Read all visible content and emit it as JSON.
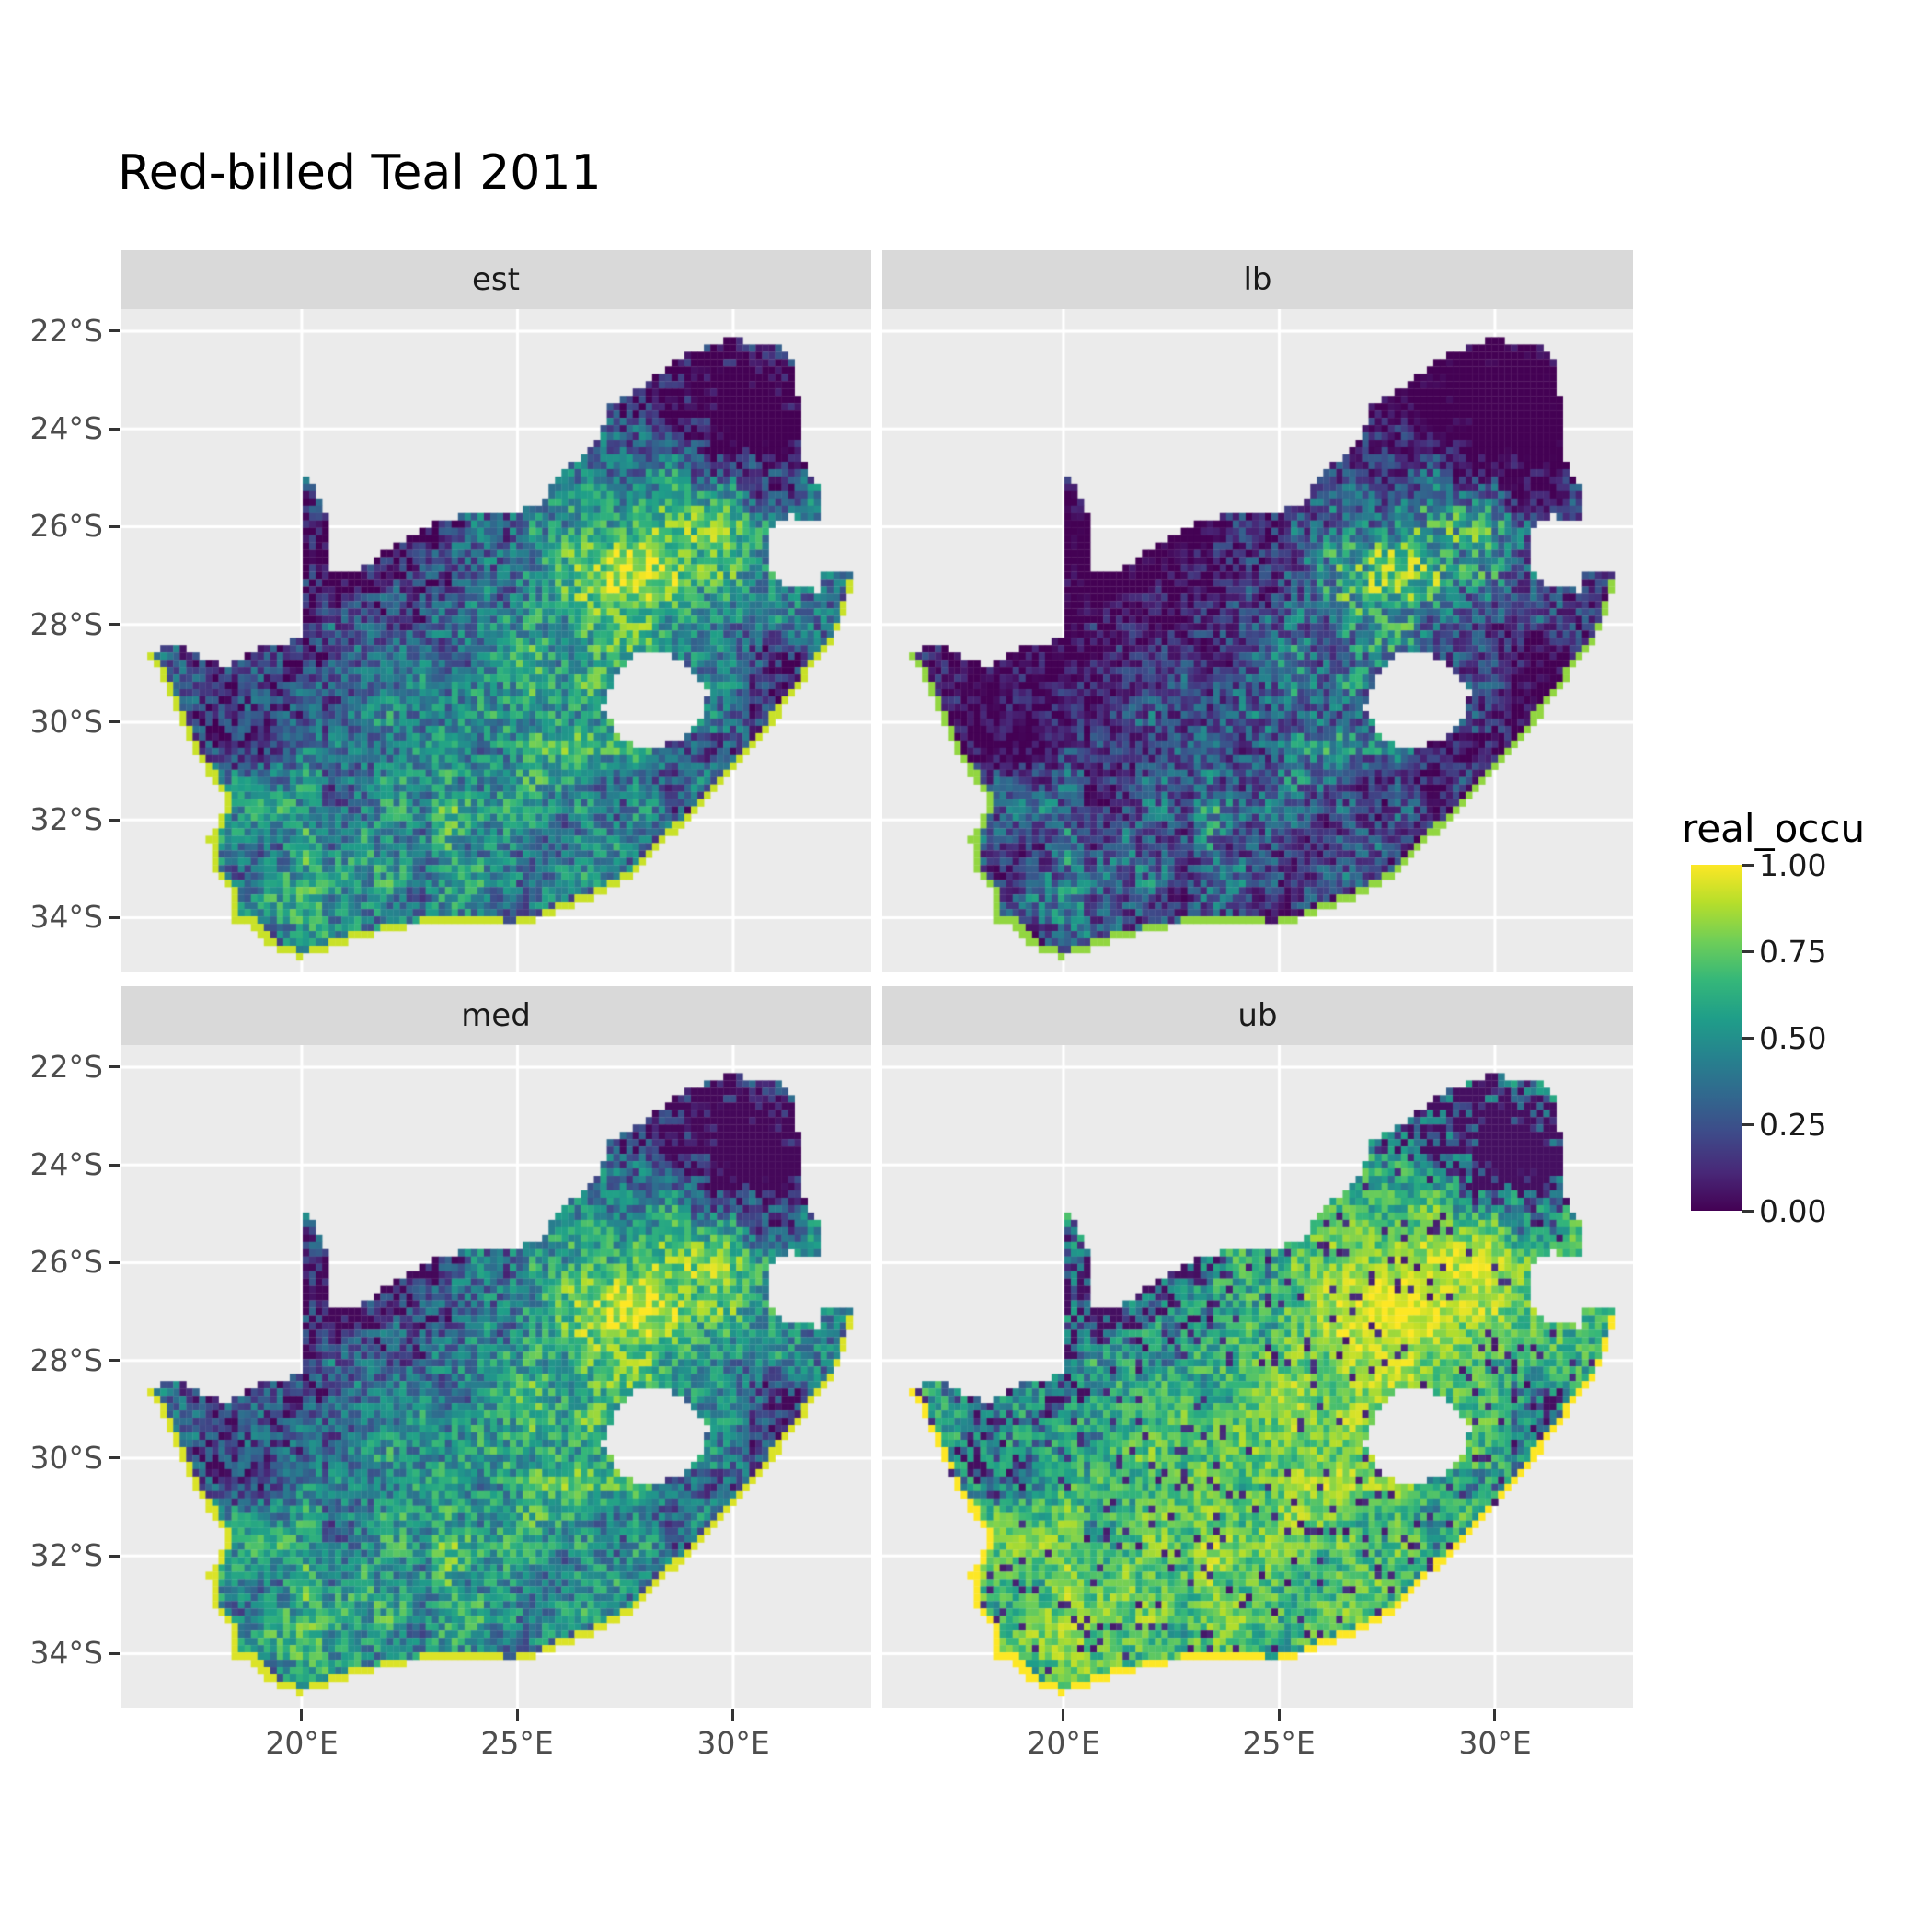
{
  "chart_data": {
    "type": "heatmap",
    "title": "Red-billed Teal 2011",
    "variable": "real_occu",
    "facets": [
      {
        "key": "est",
        "label": "est"
      },
      {
        "key": "lb",
        "label": "lb"
      },
      {
        "key": "med",
        "label": "med"
      },
      {
        "key": "ub",
        "label": "ub"
      }
    ],
    "legend": {
      "title": "real_occu",
      "tick_labels": [
        "1.00",
        "0.75",
        "0.50",
        "0.25",
        "0.00"
      ],
      "limits": [
        0,
        1
      ],
      "position": "right"
    },
    "axes": {
      "x_tick_labels": [
        "20°E",
        "25°E",
        "30°E"
      ],
      "x_tick_values": [
        20,
        25,
        30
      ],
      "y_tick_labels": [
        "22°S",
        "24°S",
        "26°S",
        "28°S",
        "30°S",
        "32°S",
        "34°S"
      ],
      "y_tick_values": [
        -22,
        -24,
        -26,
        -28,
        -30,
        -32,
        -34
      ],
      "grid": true
    },
    "projection": {
      "lon_domain": [
        15.8,
        33.2
      ],
      "lat_domain": [
        -21.55,
        -35.1
      ]
    },
    "colormap": {
      "name": "viridis",
      "stops": [
        "#440154",
        "#482878",
        "#3e4a89",
        "#31688e",
        "#26828e",
        "#1f9e89",
        "#35b779",
        "#6ece58",
        "#b5de2b",
        "#fde725"
      ]
    },
    "style": {
      "panel_bg": "#EBEBEB",
      "strip_bg": "#D9D9D9",
      "grid_color": "#FFFFFF",
      "axis_text": "#4D4D4D",
      "strip_text": "#1A1A1A",
      "title_color": "#000000"
    },
    "map": {
      "region": "South Africa",
      "cell_size_deg": 0.15,
      "outline": [
        [
          16.45,
          -28.6
        ],
        [
          17.1,
          -28.35
        ],
        [
          17.65,
          -28.7
        ],
        [
          18.3,
          -28.85
        ],
        [
          19.0,
          -28.5
        ],
        [
          19.55,
          -28.45
        ],
        [
          19.99,
          -28.25
        ],
        [
          19.99,
          -24.77
        ],
        [
          20.35,
          -25.35
        ],
        [
          20.65,
          -26.0
        ],
        [
          20.7,
          -26.85
        ],
        [
          21.4,
          -26.85
        ],
        [
          22.1,
          -26.4
        ],
        [
          22.9,
          -26.0
        ],
        [
          23.9,
          -25.75
        ],
        [
          24.75,
          -25.75
        ],
        [
          25.55,
          -25.55
        ],
        [
          25.9,
          -24.95
        ],
        [
          26.45,
          -24.6
        ],
        [
          26.85,
          -24.25
        ],
        [
          27.15,
          -23.55
        ],
        [
          27.95,
          -23.1
        ],
        [
          28.95,
          -22.45
        ],
        [
          29.95,
          -22.15
        ],
        [
          30.9,
          -22.3
        ],
        [
          31.3,
          -22.4
        ],
        [
          31.55,
          -23.5
        ],
        [
          31.55,
          -24.6
        ],
        [
          31.95,
          -25.15
        ],
        [
          32.0,
          -25.65
        ],
        [
          31.95,
          -25.95
        ],
        [
          31.3,
          -25.75
        ],
        [
          30.85,
          -26.0
        ],
        [
          30.8,
          -26.85
        ],
        [
          31.1,
          -27.2
        ],
        [
          31.95,
          -27.32
        ],
        [
          32.15,
          -26.85
        ],
        [
          32.89,
          -26.86
        ],
        [
          32.55,
          -27.9
        ],
        [
          32.25,
          -28.5
        ],
        [
          31.75,
          -29.0
        ],
        [
          31.05,
          -29.87
        ],
        [
          30.25,
          -30.75
        ],
        [
          29.4,
          -31.6
        ],
        [
          28.6,
          -32.3
        ],
        [
          27.9,
          -33.0
        ],
        [
          27.0,
          -33.5
        ],
        [
          26.3,
          -33.75
        ],
        [
          25.65,
          -34.0
        ],
        [
          24.85,
          -34.2
        ],
        [
          23.6,
          -34.1
        ],
        [
          22.5,
          -34.2
        ],
        [
          21.4,
          -34.4
        ],
        [
          20.0,
          -34.83
        ],
        [
          19.3,
          -34.6
        ],
        [
          18.8,
          -34.1
        ],
        [
          18.35,
          -34.2
        ],
        [
          18.45,
          -33.6
        ],
        [
          17.95,
          -33.0
        ],
        [
          17.85,
          -32.4
        ],
        [
          18.3,
          -31.7
        ],
        [
          17.6,
          -30.7
        ],
        [
          17.05,
          -29.7
        ],
        [
          16.7,
          -29.0
        ]
      ],
      "lesotho_hole": [
        [
          27.0,
          -29.7
        ],
        [
          27.35,
          -28.95
        ],
        [
          27.8,
          -28.6
        ],
        [
          28.5,
          -28.6
        ],
        [
          29.1,
          -28.95
        ],
        [
          29.45,
          -29.35
        ],
        [
          29.3,
          -29.95
        ],
        [
          28.75,
          -30.35
        ],
        [
          28.0,
          -30.6
        ],
        [
          27.35,
          -30.35
        ]
      ],
      "coast_start_index": 37
    },
    "field": {
      "base": 0.3,
      "blobs": [
        [
          28.3,
          -26.7,
          3.0,
          1.5,
          0.55
        ],
        [
          26.0,
          -29.4,
          2.6,
          1.6,
          0.26
        ],
        [
          24.0,
          -31.8,
          3.4,
          1.7,
          0.22
        ],
        [
          20.8,
          -33.5,
          1.8,
          1.3,
          0.26
        ],
        [
          18.9,
          -31.8,
          1.3,
          1.2,
          0.18
        ],
        [
          29.8,
          -23.2,
          2.4,
          1.3,
          -0.4
        ],
        [
          31.2,
          -23.9,
          1.4,
          1.3,
          -0.25
        ],
        [
          21.5,
          -26.2,
          2.2,
          1.7,
          -0.33
        ],
        [
          18.6,
          -30.0,
          1.6,
          1.7,
          -0.2
        ],
        [
          30.9,
          -29.8,
          1.2,
          1.9,
          -0.18
        ]
      ],
      "speckle_amp": 0.45,
      "regional_amp": 0.3,
      "coast_rim_deg": 0.13,
      "coast_rim_value": 0.92,
      "facet_params": {
        "est": {
          "exp": 1.0,
          "off": 0.0
        },
        "lb": {
          "exp": 1.75,
          "off": -0.03
        },
        "med": {
          "exp": 0.9,
          "off": 0.02
        },
        "ub": {
          "exp": 0.48,
          "off": 0.04,
          "dark_speckle": 0.07
        }
      }
    }
  }
}
